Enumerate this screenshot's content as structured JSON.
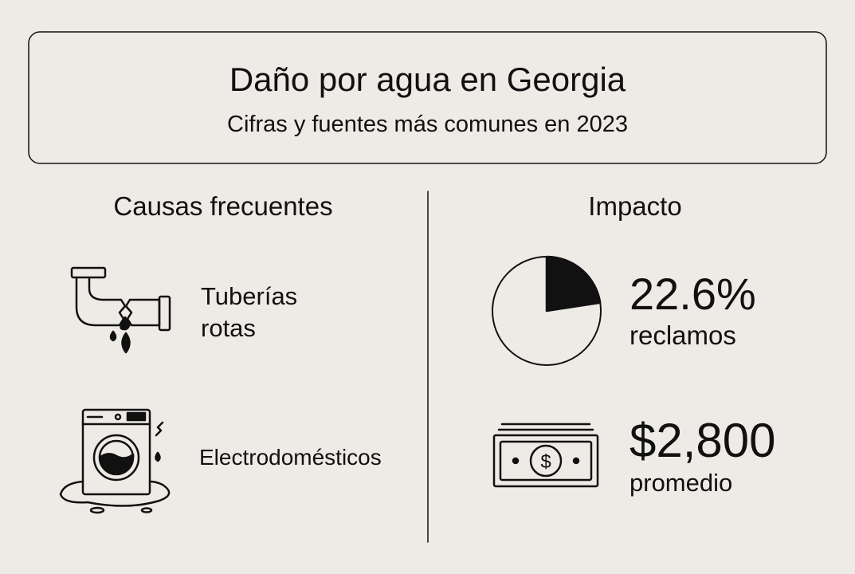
{
  "header": {
    "title": "Daño por agua en Georgia",
    "subtitle": "Cifras y fuentes más comunes en 2023"
  },
  "causes": {
    "heading": "Causas frecuentes",
    "items": [
      {
        "label": "Tuberías rotas"
      },
      {
        "label": "Electrodomésticos"
      }
    ]
  },
  "impact": {
    "heading": "Impacto",
    "items": [
      {
        "value": 22.6,
        "value_label": "22.6%",
        "caption": "reclamos"
      },
      {
        "value_label": "$2,800",
        "caption": "promedio"
      }
    ]
  }
}
